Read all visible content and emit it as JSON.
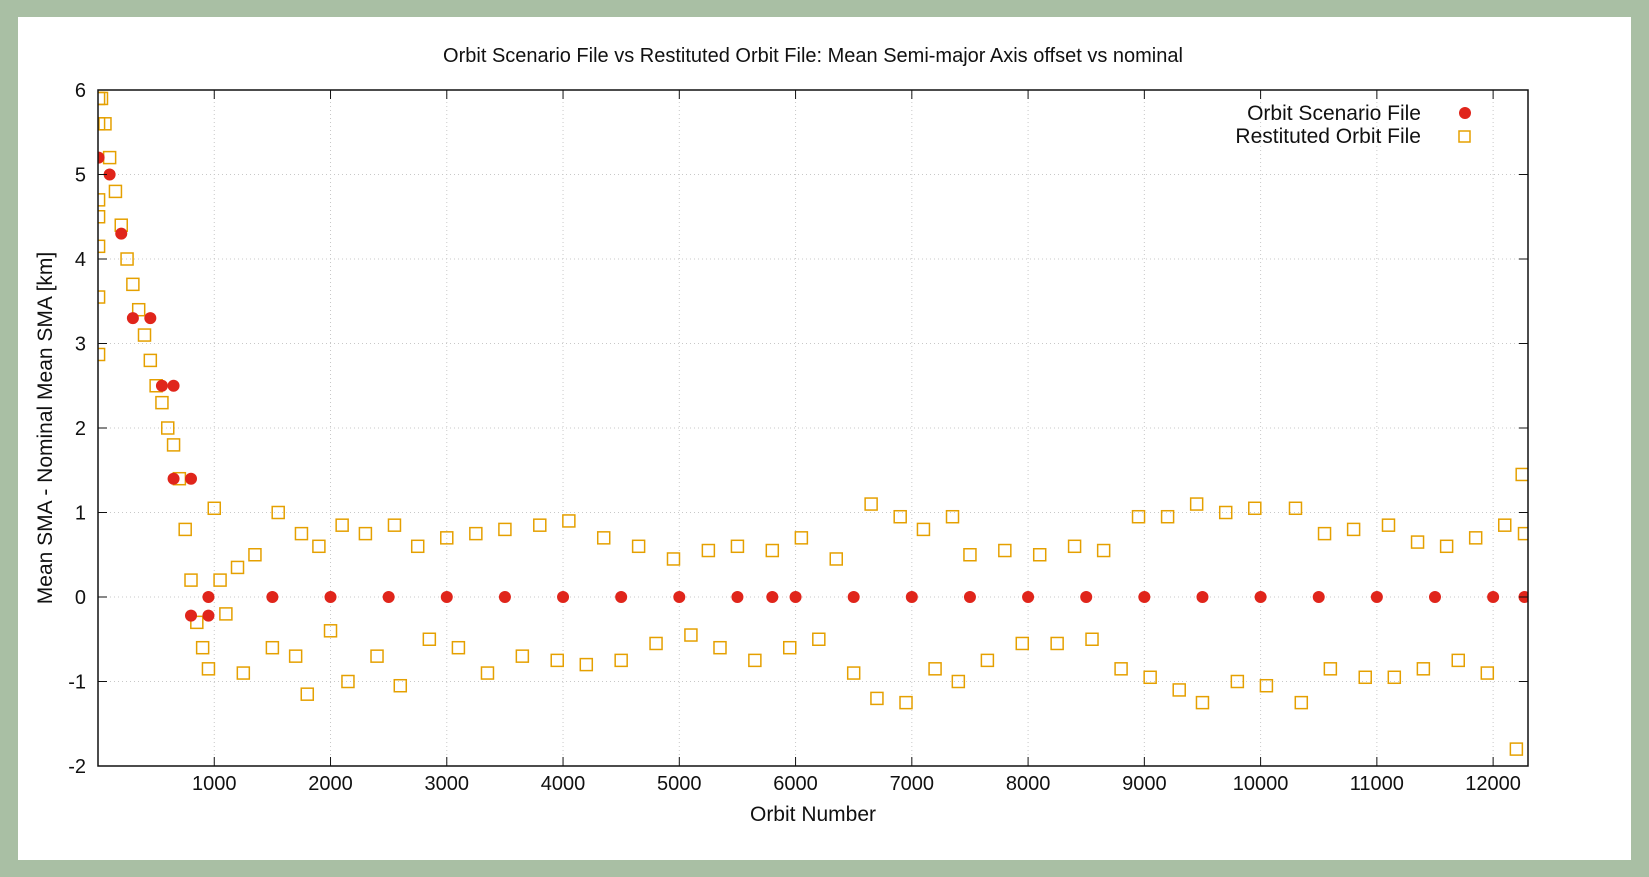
{
  "chart_data": {
    "type": "scatter",
    "title": "Orbit Scenario File vs Restituted Orbit File: Mean Semi-major Axis offset vs nominal",
    "xlabel": "Orbit Number",
    "ylabel": "Mean SMA - Nominal Mean SMA [km]",
    "xlim": [
      0,
      12300
    ],
    "ylim": [
      -2,
      6
    ],
    "xticks": [
      1000,
      2000,
      3000,
      4000,
      5000,
      6000,
      7000,
      8000,
      9000,
      10000,
      11000,
      12000
    ],
    "xtick_labels": [
      "1000",
      "2000",
      "3000",
      "4000",
      "5000",
      "6000",
      "7000",
      "8000",
      "9000",
      "10000",
      "11000",
      "12000"
    ],
    "yticks": [
      -2,
      -1,
      0,
      1,
      2,
      3,
      4,
      5,
      6
    ],
    "ytick_labels": [
      "-2",
      "-1",
      "0",
      "1",
      "2",
      "3",
      "4",
      "5",
      "6"
    ],
    "grid": true,
    "legend_position": "top-right",
    "series": [
      {
        "name": "Orbit Scenario File",
        "marker": "filled-circle",
        "color": "#e0251b",
        "points": [
          [
            5,
            5.2
          ],
          [
            100,
            5.0
          ],
          [
            200,
            4.3
          ],
          [
            300,
            3.3
          ],
          [
            450,
            3.3
          ],
          [
            550,
            2.5
          ],
          [
            650,
            2.5
          ],
          [
            650,
            1.4
          ],
          [
            800,
            1.4
          ],
          [
            800,
            -0.22
          ],
          [
            950,
            -0.22
          ],
          [
            950,
            0.0
          ],
          [
            1500,
            0.0
          ],
          [
            2000,
            0.0
          ],
          [
            2500,
            0.0
          ],
          [
            3000,
            0.0
          ],
          [
            3500,
            0.0
          ],
          [
            4000,
            0.0
          ],
          [
            4500,
            0.0
          ],
          [
            5000,
            0.0
          ],
          [
            5500,
            0.0
          ],
          [
            5800,
            0.0
          ],
          [
            6000,
            0.0
          ],
          [
            6500,
            0.0
          ],
          [
            7000,
            0.0
          ],
          [
            7500,
            0.0
          ],
          [
            8000,
            0.0
          ],
          [
            8500,
            0.0
          ],
          [
            9000,
            0.0
          ],
          [
            9500,
            0.0
          ],
          [
            10000,
            0.0
          ],
          [
            10500,
            0.0
          ],
          [
            11000,
            0.0
          ],
          [
            11500,
            0.0
          ],
          [
            12000,
            0.0
          ],
          [
            12270,
            0.0
          ]
        ]
      },
      {
        "name": "Restituted Orbit File",
        "marker": "open-square",
        "color": "#e5a000",
        "points": [
          [
            5,
            5.9
          ],
          [
            5,
            5.6
          ],
          [
            5,
            4.7
          ],
          [
            5,
            4.5
          ],
          [
            5,
            4.15
          ],
          [
            5,
            3.55
          ],
          [
            5,
            2.87
          ],
          [
            30,
            5.9
          ],
          [
            60,
            5.6
          ],
          [
            100,
            5.2
          ],
          [
            150,
            4.8
          ],
          [
            200,
            4.4
          ],
          [
            250,
            4.0
          ],
          [
            300,
            3.7
          ],
          [
            350,
            3.4
          ],
          [
            400,
            3.1
          ],
          [
            450,
            2.8
          ],
          [
            500,
            2.5
          ],
          [
            550,
            2.3
          ],
          [
            600,
            2.0
          ],
          [
            650,
            1.8
          ],
          [
            700,
            1.4
          ],
          [
            750,
            0.8
          ],
          [
            800,
            0.2
          ],
          [
            850,
            -0.3
          ],
          [
            900,
            -0.6
          ],
          [
            950,
            -0.85
          ],
          [
            1000,
            1.05
          ],
          [
            1050,
            0.2
          ],
          [
            1100,
            -0.2
          ],
          [
            1200,
            0.35
          ],
          [
            1250,
            -0.9
          ],
          [
            1350,
            0.5
          ],
          [
            1500,
            -0.6
          ],
          [
            1550,
            1.0
          ],
          [
            1700,
            -0.7
          ],
          [
            1750,
            0.75
          ],
          [
            1800,
            -1.15
          ],
          [
            1900,
            0.6
          ],
          [
            2000,
            -0.4
          ],
          [
            2100,
            0.85
          ],
          [
            2150,
            -1.0
          ],
          [
            2300,
            0.75
          ],
          [
            2400,
            -0.7
          ],
          [
            2550,
            0.85
          ],
          [
            2600,
            -1.05
          ],
          [
            2750,
            0.6
          ],
          [
            2850,
            -0.5
          ],
          [
            3000,
            0.7
          ],
          [
            3100,
            -0.6
          ],
          [
            3250,
            0.75
          ],
          [
            3350,
            -0.9
          ],
          [
            3500,
            0.8
          ],
          [
            3650,
            -0.7
          ],
          [
            3800,
            0.85
          ],
          [
            3950,
            -0.75
          ],
          [
            4050,
            0.9
          ],
          [
            4200,
            -0.8
          ],
          [
            4350,
            0.7
          ],
          [
            4500,
            -0.75
          ],
          [
            4650,
            0.6
          ],
          [
            4800,
            -0.55
          ],
          [
            4950,
            0.45
          ],
          [
            5100,
            -0.45
          ],
          [
            5250,
            0.55
          ],
          [
            5350,
            -0.6
          ],
          [
            5500,
            0.6
          ],
          [
            5650,
            -0.75
          ],
          [
            5800,
            0.55
          ],
          [
            5950,
            -0.6
          ],
          [
            6050,
            0.7
          ],
          [
            6200,
            -0.5
          ],
          [
            6350,
            0.45
          ],
          [
            6500,
            -0.9
          ],
          [
            6650,
            1.1
          ],
          [
            6700,
            -1.2
          ],
          [
            6900,
            0.95
          ],
          [
            6950,
            -1.25
          ],
          [
            7100,
            0.8
          ],
          [
            7200,
            -0.85
          ],
          [
            7350,
            0.95
          ],
          [
            7400,
            -1.0
          ],
          [
            7500,
            0.5
          ],
          [
            7650,
            -0.75
          ],
          [
            7800,
            0.55
          ],
          [
            7950,
            -0.55
          ],
          [
            8100,
            0.5
          ],
          [
            8250,
            -0.55
          ],
          [
            8400,
            0.6
          ],
          [
            8550,
            -0.5
          ],
          [
            8650,
            0.55
          ],
          [
            8800,
            -0.85
          ],
          [
            8950,
            0.95
          ],
          [
            9050,
            -0.95
          ],
          [
            9200,
            0.95
          ],
          [
            9300,
            -1.1
          ],
          [
            9450,
            1.1
          ],
          [
            9500,
            -1.25
          ],
          [
            9700,
            1.0
          ],
          [
            9800,
            -1.0
          ],
          [
            9950,
            1.05
          ],
          [
            10050,
            -1.05
          ],
          [
            10300,
            1.05
          ],
          [
            10350,
            -1.25
          ],
          [
            10550,
            0.75
          ],
          [
            10600,
            -0.85
          ],
          [
            10800,
            0.8
          ],
          [
            10900,
            -0.95
          ],
          [
            11100,
            0.85
          ],
          [
            11150,
            -0.95
          ],
          [
            11350,
            0.65
          ],
          [
            11400,
            -0.85
          ],
          [
            11600,
            0.6
          ],
          [
            11700,
            -0.75
          ],
          [
            11850,
            0.7
          ],
          [
            11950,
            -0.9
          ],
          [
            12100,
            0.85
          ],
          [
            12200,
            -1.8
          ],
          [
            12250,
            1.45
          ],
          [
            12270,
            0.75
          ]
        ]
      }
    ]
  }
}
